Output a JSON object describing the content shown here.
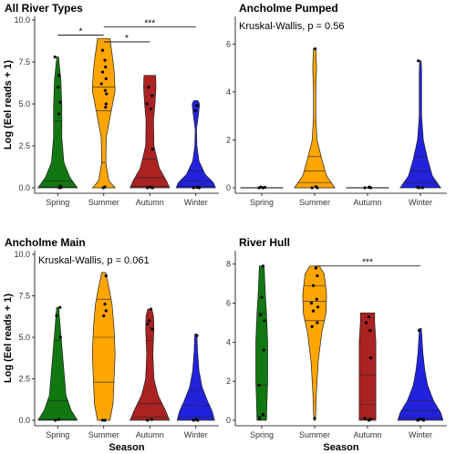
{
  "chart_data": [
    {
      "type": "violin",
      "title": "All River Types",
      "xlabel": "",
      "ylabel": "Log (Eel reads + 1)",
      "categories": [
        "Spring",
        "Summer",
        "Autumn",
        "Winter"
      ],
      "colors": [
        "#117711",
        "#ffa500",
        "#aa2222",
        "#2222dd"
      ],
      "ylim": [
        0,
        10
      ],
      "yticks": [
        0.0,
        2.5,
        5.0,
        7.5,
        10.0
      ],
      "ytick_labels": [
        "0.0",
        "2.5",
        "5.0",
        "7.5",
        "10.0"
      ],
      "annotation": "",
      "violins": [
        {
          "ymax": 7.8,
          "profile": [
            [
              0,
              0.95
            ],
            [
              0.6,
              0.6
            ],
            [
              1.5,
              0.3
            ],
            [
              3.0,
              0.2
            ],
            [
              5.0,
              0.2
            ],
            [
              6.5,
              0.15
            ],
            [
              7.8,
              0.04
            ]
          ],
          "quantiles": [
            0.05,
            0.4,
            4.0
          ]
        },
        {
          "ymax": 8.9,
          "profile": [
            [
              0,
              0.55
            ],
            [
              0.4,
              0.25
            ],
            [
              1.5,
              0.1
            ],
            [
              3.0,
              0.12
            ],
            [
              4.5,
              0.35
            ],
            [
              5.8,
              0.55
            ],
            [
              7.0,
              0.5
            ],
            [
              8.0,
              0.4
            ],
            [
              8.9,
              0.3
            ]
          ],
          "quantiles": [
            1.5,
            4.6,
            6.0
          ]
        },
        {
          "ymax": 6.7,
          "profile": [
            [
              0,
              0.95
            ],
            [
              0.3,
              0.85
            ],
            [
              1.2,
              0.45
            ],
            [
              2.5,
              0.2
            ],
            [
              4.0,
              0.18
            ],
            [
              5.0,
              0.25
            ],
            [
              6.0,
              0.3
            ],
            [
              6.7,
              0.28
            ]
          ],
          "quantiles": [
            0.1,
            0.6,
            1.7
          ]
        },
        {
          "ymax": 5.2,
          "profile": [
            [
              0,
              0.95
            ],
            [
              0.3,
              0.85
            ],
            [
              0.8,
              0.45
            ],
            [
              1.6,
              0.15
            ],
            [
              2.5,
              0.05
            ],
            [
              3.5,
              0.03
            ],
            [
              4.3,
              0.12
            ],
            [
              5.0,
              0.18
            ],
            [
              5.2,
              0.1
            ]
          ],
          "quantiles": [
            0.1,
            0.4,
            1.0
          ]
        }
      ],
      "points": [
        [
          [
            0.0,
            0.08
          ],
          [
            0.05,
            0.1
          ],
          [
            0.1,
            0.12
          ],
          [
            0.03,
            0.15
          ],
          [
            5.1,
            0.1
          ],
          [
            6.7,
            0.05
          ],
          [
            7.8,
            -0.12
          ],
          [
            6.0,
            0.02
          ],
          [
            4.4,
            0.05
          ]
        ],
        [
          [
            0.0,
            -0.02
          ],
          [
            0.05,
            0.05
          ],
          [
            8.2,
            -0.05
          ],
          [
            7.6,
            0.05
          ],
          [
            7.2,
            0.08
          ],
          [
            6.5,
            0.1
          ],
          [
            6.2,
            -0.1
          ],
          [
            5.8,
            0.06
          ],
          [
            5.6,
            0.12
          ],
          [
            5.0,
            0.1
          ],
          [
            4.8,
            0.08
          ],
          [
            6.9,
            -0.05
          ]
        ],
        [
          [
            0.0,
            -0.1
          ],
          [
            0.0,
            0.12
          ],
          [
            0.05,
            0.02
          ],
          [
            0.02,
            0.08
          ],
          [
            5.5,
            0.1
          ],
          [
            5.0,
            -0.12
          ],
          [
            6.0,
            -0.05
          ],
          [
            4.7,
            0.05
          ],
          [
            2.3,
            0.12
          ]
        ],
        [
          [
            0.0,
            -0.1
          ],
          [
            0.05,
            0.1
          ],
          [
            0.02,
            0.05
          ],
          [
            0.0,
            0.15
          ],
          [
            4.9,
            0.05
          ],
          [
            4.6,
            -0.02
          ]
        ]
      ],
      "comparisons": [
        {
          "from": "Spring",
          "to": "Summer",
          "label": "*"
        },
        {
          "from": "Summer",
          "to": "Autumn",
          "label": "*"
        },
        {
          "from": "Summer",
          "to": "Winter",
          "label": "***"
        }
      ]
    },
    {
      "type": "violin",
      "title": "Ancholme Pumped",
      "xlabel": "",
      "ylabel": "",
      "categories": [
        "Spring",
        "Summer",
        "Autumn",
        "Winter"
      ],
      "colors": [
        "#117711",
        "#ffa500",
        "#aa2222",
        "#2222dd"
      ],
      "ylim": [
        0,
        7
      ],
      "yticks": [
        0,
        2,
        4,
        6
      ],
      "ytick_labels": [
        "0",
        "2",
        "4",
        "6"
      ],
      "annotation": "Kruskal-Wallis, p = 0.56",
      "violins": [
        {
          "ymax": 0.001,
          "profile": [
            [
              0,
              0.9
            ],
            [
              0.001,
              0.9
            ]
          ],
          "quantiles": []
        },
        {
          "ymax": 5.8,
          "profile": [
            [
              0,
              0.85
            ],
            [
              0.5,
              0.5
            ],
            [
              1.2,
              0.3
            ],
            [
              2.0,
              0.1
            ],
            [
              3.0,
              0.05
            ],
            [
              4.0,
              0.05
            ],
            [
              5.0,
              0.08
            ],
            [
              5.8,
              0.05
            ]
          ],
          "quantiles": [
            0.2,
            0.7,
            1.3
          ]
        },
        {
          "ymax": 0.001,
          "profile": [
            [
              0,
              0.9
            ],
            [
              0.001,
              0.9
            ]
          ],
          "quantiles": []
        },
        {
          "ymax": 5.3,
          "profile": [
            [
              0,
              0.85
            ],
            [
              0.5,
              0.5
            ],
            [
              1.2,
              0.3
            ],
            [
              2.0,
              0.12
            ],
            [
              3.0,
              0.05
            ],
            [
              4.0,
              0.05
            ],
            [
              4.8,
              0.05
            ],
            [
              5.3,
              0.03
            ]
          ],
          "quantiles": [
            0.2,
            0.7,
            1.3
          ]
        }
      ],
      "points": [
        [
          [
            0.0,
            -0.1
          ],
          [
            0.02,
            0.12
          ],
          [
            0.0,
            0.05
          ],
          [
            0.03,
            -0.04
          ]
        ],
        [
          [
            0.0,
            -0.1
          ],
          [
            0.05,
            0.05
          ],
          [
            0.0,
            0.1
          ],
          [
            5.8,
            0.02
          ]
        ],
        [
          [
            0.0,
            -0.1
          ],
          [
            0.02,
            0.05
          ],
          [
            0.0,
            0.12
          ],
          [
            0.03,
            0.08
          ]
        ],
        [
          [
            0.0,
            -0.05
          ],
          [
            0.0,
            0.08
          ],
          [
            0.02,
            -0.1
          ],
          [
            5.3,
            -0.08
          ]
        ]
      ],
      "comparisons": []
    },
    {
      "type": "violin",
      "title": "Ancholme Main",
      "xlabel": "Season",
      "ylabel": "Log (Eel reads + 1)",
      "categories": [
        "Spring",
        "Summer",
        "Autumn",
        "Winter"
      ],
      "colors": [
        "#117711",
        "#ffa500",
        "#aa2222",
        "#2222dd"
      ],
      "ylim": [
        0,
        10
      ],
      "yticks": [
        0.0,
        2.5,
        5.0,
        7.5,
        10.0
      ],
      "ytick_labels": [
        "0.0",
        "2.5",
        "5.0",
        "7.5",
        "10.0"
      ],
      "annotation": "Kruskal-Wallis, p = 0.061",
      "violins": [
        {
          "ymax": 6.8,
          "profile": [
            [
              0,
              0.95
            ],
            [
              0.6,
              0.65
            ],
            [
              1.5,
              0.4
            ],
            [
              3.0,
              0.3
            ],
            [
              4.5,
              0.2
            ],
            [
              6.0,
              0.1
            ],
            [
              6.8,
              0.05
            ]
          ],
          "quantiles": [
            0.05,
            1.2,
            4.8
          ]
        },
        {
          "ymax": 8.9,
          "profile": [
            [
              0,
              0.3
            ],
            [
              1.0,
              0.45
            ],
            [
              2.5,
              0.5
            ],
            [
              4.0,
              0.55
            ],
            [
              5.5,
              0.5
            ],
            [
              7.0,
              0.4
            ],
            [
              8.0,
              0.25
            ],
            [
              8.9,
              0.1
            ]
          ],
          "quantiles": [
            2.3,
            5.0,
            7.3
          ]
        },
        {
          "ymax": 6.7,
          "profile": [
            [
              0,
              0.95
            ],
            [
              0.6,
              0.75
            ],
            [
              1.5,
              0.4
            ],
            [
              2.5,
              0.2
            ],
            [
              4.0,
              0.15
            ],
            [
              5.5,
              0.2
            ],
            [
              6.3,
              0.18
            ],
            [
              6.7,
              0.1
            ]
          ],
          "quantiles": [
            0.2,
            1.0,
            4.8
          ]
        },
        {
          "ymax": 5.2,
          "profile": [
            [
              0,
              0.9
            ],
            [
              0.5,
              0.8
            ],
            [
              1.2,
              0.55
            ],
            [
              2.0,
              0.3
            ],
            [
              3.0,
              0.15
            ],
            [
              4.2,
              0.08
            ],
            [
              5.2,
              0.05
            ]
          ],
          "quantiles": [
            0.2,
            0.9,
            1.8
          ]
        }
      ],
      "points": [
        [
          [
            0.0,
            -0.1
          ],
          [
            0.05,
            0.05
          ],
          [
            6.8,
            0.1
          ],
          [
            5.0,
            0.12
          ],
          [
            6.3,
            -0.05
          ]
        ],
        [
          [
            0.0,
            -0.05
          ],
          [
            0.0,
            0.05
          ],
          [
            8.7,
            0.1
          ],
          [
            7.0,
            0.05
          ],
          [
            6.6,
            0.1
          ],
          [
            6.3,
            0.0
          ]
        ],
        [
          [
            0.0,
            -0.1
          ],
          [
            0.05,
            0.08
          ],
          [
            6.7,
            0.05
          ],
          [
            6.0,
            -0.02
          ],
          [
            5.5,
            0.1
          ],
          [
            5.8,
            -0.1
          ]
        ],
        [
          [
            0.0,
            -0.1
          ],
          [
            0.0,
            0.08
          ],
          [
            0.05,
            0.02
          ],
          [
            5.1,
            0.05
          ]
        ]
      ],
      "comparisons": []
    },
    {
      "type": "violin",
      "title": "River Hull",
      "xlabel": "Season",
      "ylabel": "",
      "categories": [
        "Spring",
        "Summer",
        "Autumn",
        "Winter"
      ],
      "colors": [
        "#117711",
        "#ffa500",
        "#aa2222",
        "#2222dd"
      ],
      "ylim": [
        0,
        8.5
      ],
      "yticks": [
        0,
        2,
        4,
        6,
        8
      ],
      "ytick_labels": [
        "0",
        "2",
        "4",
        "6",
        "8"
      ],
      "annotation": "",
      "violins": [
        {
          "ymax": 7.9,
          "profile": [
            [
              0,
              0.2
            ],
            [
              1.0,
              0.22
            ],
            [
              2.0,
              0.25
            ],
            [
              4.0,
              0.25
            ],
            [
              5.5,
              0.2
            ],
            [
              6.5,
              0.15
            ],
            [
              7.9,
              0.1
            ]
          ],
          "quantiles": [
            0.2,
            1.8,
            5.5
          ]
        },
        {
          "ymax": 7.9,
          "profile": [
            [
              0,
              0.03
            ],
            [
              0.5,
              0.05
            ],
            [
              1.5,
              0.08
            ],
            [
              3.0,
              0.15
            ],
            [
              4.5,
              0.3
            ],
            [
              5.5,
              0.48
            ],
            [
              6.5,
              0.5
            ],
            [
              7.5,
              0.4
            ],
            [
              7.9,
              0.2
            ]
          ],
          "quantiles": [
            5.1,
            6.1,
            6.9
          ]
        },
        {
          "ymax": 5.5,
          "profile": [
            [
              0,
              0.35
            ],
            [
              1.0,
              0.35
            ],
            [
              2.0,
              0.35
            ],
            [
              3.0,
              0.35
            ],
            [
              4.0,
              0.35
            ],
            [
              5.0,
              0.3
            ],
            [
              5.5,
              0.3
            ]
          ],
          "quantiles": [
            0.1,
            0.8,
            2.3
          ]
        },
        {
          "ymax": 4.7,
          "profile": [
            [
              0,
              0.95
            ],
            [
              0.4,
              0.85
            ],
            [
              1.0,
              0.55
            ],
            [
              1.8,
              0.3
            ],
            [
              2.6,
              0.18
            ],
            [
              3.5,
              0.1
            ],
            [
              4.7,
              0.04
            ]
          ],
          "quantiles": [
            0.1,
            0.5,
            1.0
          ]
        }
      ],
      "points": [
        [
          [
            7.9,
            0.05
          ],
          [
            6.3,
            0.0
          ],
          [
            5.4,
            -0.05
          ],
          [
            5.1,
            0.1
          ],
          [
            3.6,
            0.08
          ],
          [
            1.8,
            -0.1
          ],
          [
            0.3,
            0.05
          ],
          [
            0.1,
            -0.08
          ]
        ],
        [
          [
            7.8,
            0.05
          ],
          [
            7.4,
            0.1
          ],
          [
            6.9,
            -0.05
          ],
          [
            6.2,
            0.08
          ],
          [
            6.0,
            -0.12
          ],
          [
            5.8,
            0.12
          ],
          [
            5.6,
            -0.05
          ],
          [
            5.0,
            0.1
          ],
          [
            4.8,
            -0.1
          ],
          [
            0.1,
            0.0
          ]
        ],
        [
          [
            5.3,
            0.05
          ],
          [
            5.0,
            -0.05
          ],
          [
            4.6,
            0.1
          ],
          [
            3.2,
            0.12
          ],
          [
            0.1,
            -0.1
          ],
          [
            0.0,
            0.05
          ],
          [
            0.05,
            0.12
          ]
        ],
        [
          [
            0.0,
            -0.1
          ],
          [
            0.05,
            0.08
          ],
          [
            0.0,
            0.12
          ],
          [
            4.6,
            -0.05
          ],
          [
            0.05,
            -0.02
          ]
        ]
      ],
      "comparisons": [
        {
          "from": "Summer",
          "to": "Winter",
          "label": "***"
        }
      ]
    }
  ]
}
